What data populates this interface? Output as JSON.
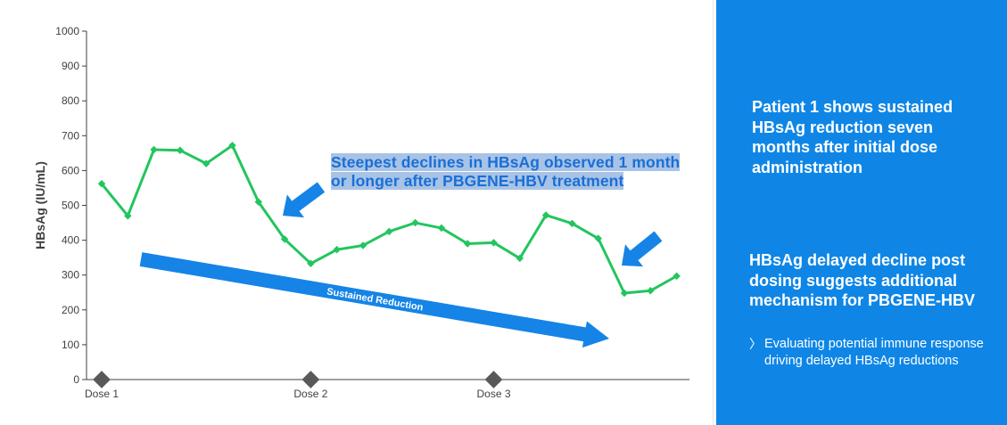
{
  "chart_data": {
    "type": "line",
    "ylabel": "HBsAg (IU/mL)",
    "ylim": [
      0,
      1000
    ],
    "yticks": [
      "0",
      "100",
      "200",
      "300",
      "400",
      "500",
      "600",
      "700",
      "800",
      "900",
      "1000"
    ],
    "x_range": [
      0,
      22.5
    ],
    "x_markers": [
      {
        "label": "Dose 1",
        "x": 0
      },
      {
        "label": "Dose 2",
        "x": 8
      },
      {
        "label": "Dose 3",
        "x": 15
      }
    ],
    "series": [
      {
        "color": "#22c55e",
        "x": [
          0,
          1,
          2,
          3,
          4,
          5,
          6,
          7,
          8,
          9,
          10,
          11,
          12,
          13,
          14,
          15,
          16,
          17,
          18,
          19,
          20,
          21,
          22
        ],
        "values": [
          562,
          470,
          660,
          658,
          620,
          672,
          510,
          403,
          333,
          373,
          385,
          425,
          450,
          435,
          390,
          393,
          348,
          472,
          448,
          405,
          248,
          255,
          297
        ]
      }
    ],
    "annotations": [
      {
        "text": "Sustained Reduction",
        "kind": "trend-arrow",
        "color": "#1584e6"
      },
      {
        "kind": "pointer-arrow",
        "color": "#1584e6"
      },
      {
        "kind": "pointer-arrow",
        "color": "#1584e6"
      }
    ],
    "callout": "Steepest declines in HBsAg observed 1 month or longer after PBGENE-HBV treatment",
    "grid": false,
    "legend": "none"
  },
  "colors": {
    "line": "#22c55e",
    "arrow": "#1584e6",
    "panel": "#0f86e6",
    "marker": "#595959",
    "callout_text": "#1a6fd6",
    "callout_highlight": "#a8c3e6"
  },
  "side_panel": {
    "heading1": "Patient 1 shows sustained HBsAg reduction seven months after initial dose administration",
    "heading2": "HBsAg delayed decline post dosing suggests additional mechanism for PBGENE-HBV",
    "bullet_icon": "chevron-right",
    "bullet": "Evaluating potential immune response driving delayed HBsAg reductions"
  }
}
